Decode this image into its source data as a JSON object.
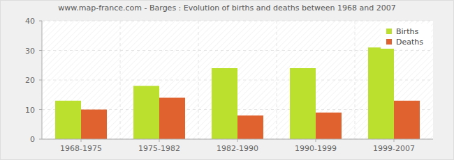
{
  "chart_data": {
    "type": "bar",
    "title": "www.map-france.com - Barges : Evolution of births and deaths between 1968 and 2007",
    "categories": [
      "1968-1975",
      "1975-1982",
      "1982-1990",
      "1990-1999",
      "1999-2007"
    ],
    "series": [
      {
        "name": "Births",
        "color": "#bbe02e",
        "values": [
          13,
          18,
          24,
          24,
          31
        ]
      },
      {
        "name": "Deaths",
        "color": "#e0632f",
        "values": [
          10,
          14,
          8,
          9,
          13
        ]
      }
    ],
    "ylim": [
      0,
      40
    ],
    "yticks": [
      0,
      10,
      20,
      30,
      40
    ],
    "grid": true,
    "legend": "top-right"
  }
}
